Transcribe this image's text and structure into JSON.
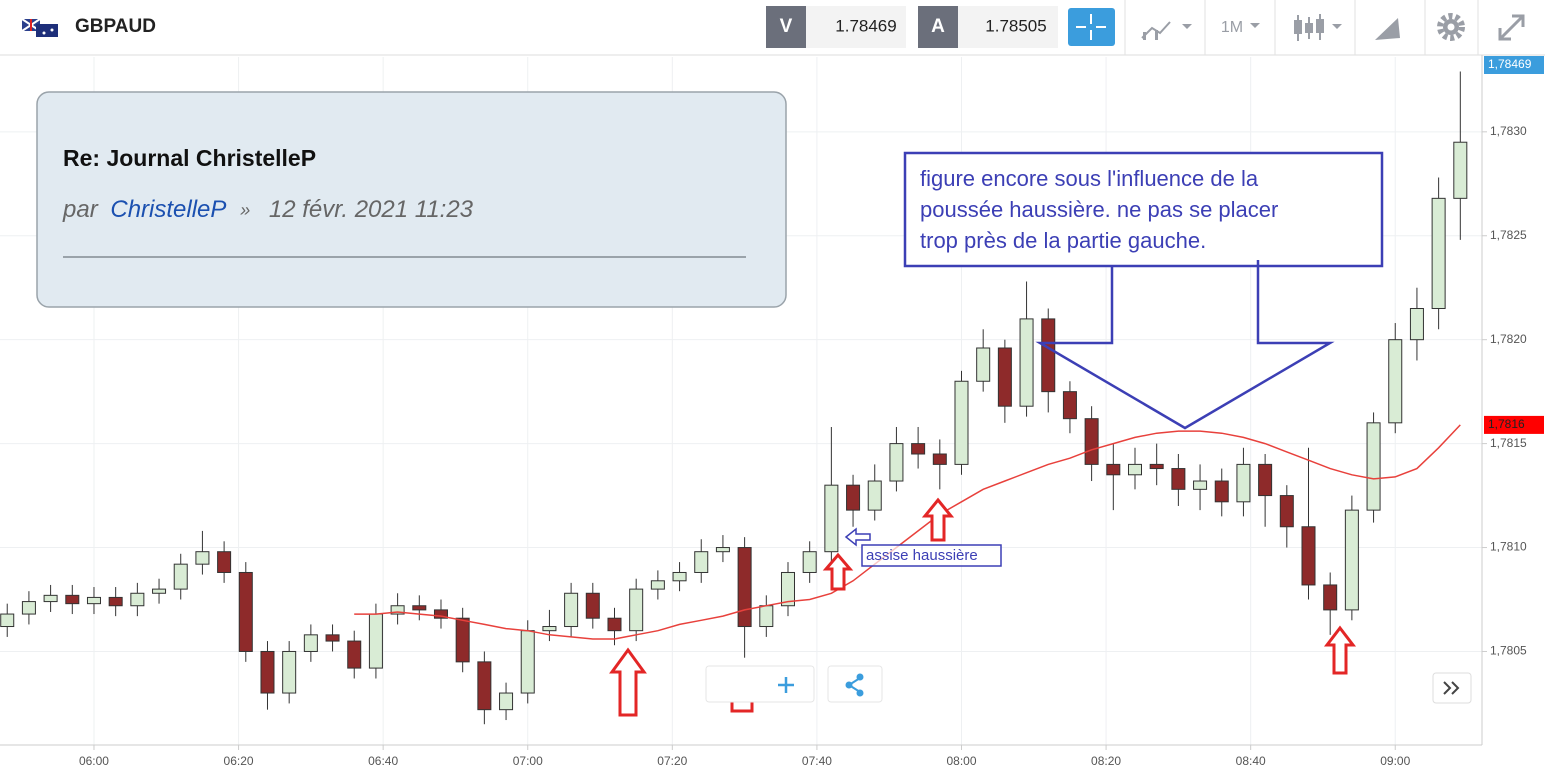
{
  "header": {
    "symbol": "GBPAUD",
    "bid_label": "V",
    "bid": 1.78469,
    "ask_label": "A",
    "ask": 1.78505,
    "timeframe": "1M"
  },
  "post": {
    "title": "Re: Journal ChristelleP",
    "by": "par",
    "author": "ChristelleP",
    "separator": "»",
    "date": "12 févr. 2021 11:23"
  },
  "chart_data": {
    "type": "candlestick",
    "x": [
      "05:48",
      "05:51",
      "05:54",
      "05:57",
      "06:00",
      "06:03",
      "06:06",
      "06:09",
      "06:12",
      "06:15",
      "06:18",
      "06:21",
      "06:24",
      "06:27",
      "06:30",
      "06:33",
      "06:36",
      "06:39",
      "06:42",
      "06:45",
      "06:48",
      "06:51",
      "06:54",
      "06:57",
      "07:00",
      "07:03",
      "07:06",
      "07:09",
      "07:12",
      "07:15",
      "07:18",
      "07:21",
      "07:24",
      "07:27",
      "07:30",
      "07:33",
      "07:36",
      "07:39",
      "07:42",
      "07:45",
      "07:48",
      "07:51",
      "07:54",
      "07:57",
      "08:00",
      "08:03",
      "08:06",
      "08:09",
      "08:12",
      "08:15",
      "08:18",
      "08:21",
      "08:24",
      "08:27",
      "08:30",
      "08:33",
      "08:36",
      "08:39",
      "08:42",
      "08:45",
      "08:48",
      "08:51",
      "08:54",
      "08:57",
      "09:00",
      "09:03",
      "09:06",
      "09:09"
    ],
    "open": [
      1.78062,
      1.78068,
      1.78074,
      1.78077,
      1.78073,
      1.78076,
      1.78072,
      1.78078,
      1.7808,
      1.78092,
      1.78098,
      1.78088,
      1.7805,
      1.7803,
      1.7805,
      1.78058,
      1.78055,
      1.78042,
      1.78068,
      1.78072,
      1.7807,
      1.78066,
      1.78045,
      1.78022,
      1.7803,
      1.7806,
      1.78062,
      1.78078,
      1.78066,
      1.7806,
      1.7808,
      1.78084,
      1.78088,
      1.78098,
      1.781,
      1.78062,
      1.78072,
      1.78088,
      1.78098,
      1.7813,
      1.78118,
      1.78132,
      1.7815,
      1.78145,
      1.7814,
      1.7818,
      1.78196,
      1.78168,
      1.7821,
      1.78175,
      1.78162,
      1.7814,
      1.78135,
      1.7814,
      1.78138,
      1.78128,
      1.78132,
      1.78122,
      1.7814,
      1.78125,
      1.7811,
      1.78082,
      1.7807,
      1.78118,
      1.7816,
      1.782,
      1.78215,
      1.78268
    ],
    "high": [
      1.78073,
      1.78079,
      1.78082,
      1.78082,
      1.78081,
      1.78081,
      1.78083,
      1.78085,
      1.78097,
      1.78108,
      1.78103,
      1.78093,
      1.78055,
      1.78055,
      1.78063,
      1.78063,
      1.7806,
      1.78073,
      1.78078,
      1.78077,
      1.78075,
      1.78071,
      1.7805,
      1.78035,
      1.78065,
      1.7807,
      1.78083,
      1.78083,
      1.78071,
      1.78085,
      1.78089,
      1.78093,
      1.78104,
      1.78106,
      1.78105,
      1.78077,
      1.78093,
      1.78103,
      1.78158,
      1.78135,
      1.7814,
      1.78158,
      1.78158,
      1.78152,
      1.78185,
      1.78205,
      1.782,
      1.78228,
      1.78215,
      1.7818,
      1.78168,
      1.7815,
      1.78148,
      1.7815,
      1.78145,
      1.7814,
      1.78138,
      1.78148,
      1.78145,
      1.7813,
      1.78148,
      1.78088,
      1.78125,
      1.78165,
      1.78208,
      1.78225,
      1.78278,
      1.78329
    ],
    "low": [
      1.78057,
      1.78063,
      1.78069,
      1.78068,
      1.78068,
      1.78067,
      1.78067,
      1.78073,
      1.78075,
      1.78087,
      1.78083,
      1.78045,
      1.78022,
      1.78025,
      1.78045,
      1.7805,
      1.78037,
      1.78037,
      1.78063,
      1.78065,
      1.78061,
      1.7804,
      1.78015,
      1.78017,
      1.78025,
      1.78055,
      1.78057,
      1.78061,
      1.78053,
      1.78055,
      1.78075,
      1.78079,
      1.78083,
      1.78093,
      1.78047,
      1.78057,
      1.78067,
      1.78083,
      1.78093,
      1.7811,
      1.78113,
      1.78127,
      1.78138,
      1.78128,
      1.78135,
      1.78175,
      1.7816,
      1.78163,
      1.78165,
      1.78155,
      1.78132,
      1.78118,
      1.78128,
      1.7813,
      1.7812,
      1.78118,
      1.78115,
      1.78115,
      1.7811,
      1.781,
      1.78075,
      1.78058,
      1.78065,
      1.78112,
      1.78155,
      1.7819,
      1.78205,
      1.78248
    ],
    "close": [
      1.78068,
      1.78074,
      1.78077,
      1.78073,
      1.78076,
      1.78072,
      1.78078,
      1.7808,
      1.78092,
      1.78098,
      1.78088,
      1.7805,
      1.7803,
      1.7805,
      1.78058,
      1.78055,
      1.78042,
      1.78068,
      1.78072,
      1.7807,
      1.78066,
      1.78045,
      1.78022,
      1.7803,
      1.7806,
      1.78062,
      1.78078,
      1.78066,
      1.7806,
      1.7808,
      1.78084,
      1.78088,
      1.78098,
      1.781,
      1.78062,
      1.78072,
      1.78088,
      1.78098,
      1.7813,
      1.78118,
      1.78132,
      1.7815,
      1.78145,
      1.7814,
      1.7818,
      1.78196,
      1.78168,
      1.7821,
      1.78175,
      1.78162,
      1.7814,
      1.78135,
      1.7814,
      1.78138,
      1.78128,
      1.78132,
      1.78122,
      1.7814,
      1.78125,
      1.7811,
      1.78082,
      1.7807,
      1.78118,
      1.7816,
      1.782,
      1.78215,
      1.78268,
      1.78295
    ],
    "up_color": "#d9ecd5",
    "down_color": "#8e2a2a",
    "moving_average": {
      "color": "#e8413c",
      "values": [
        null,
        null,
        null,
        null,
        null,
        null,
        null,
        null,
        null,
        null,
        null,
        null,
        null,
        null,
        null,
        null,
        1.78068,
        1.78068,
        1.78069,
        1.78068,
        1.78067,
        1.78065,
        1.78063,
        1.78061,
        1.7806,
        1.78058,
        1.78057,
        1.78056,
        1.78056,
        1.78058,
        1.7806,
        1.78063,
        1.78065,
        1.78067,
        1.7807,
        1.78072,
        1.78074,
        1.78075,
        1.78078,
        1.78084,
        1.78092,
        1.781,
        1.78108,
        1.78116,
        1.78122,
        1.78128,
        1.78132,
        1.78136,
        1.7814,
        1.78143,
        1.78147,
        1.7815,
        1.78153,
        1.78155,
        1.78156,
        1.78156,
        1.78155,
        1.78153,
        1.7815,
        1.78146,
        1.78142,
        1.78138,
        1.78135,
        1.78133,
        1.78134,
        1.78138,
        1.78148,
        1.78159
      ]
    },
    "ylim": [
      1.78005,
      1.78336
    ],
    "yticks": [
      {
        "value": 1.7805,
        "label": "1,7805"
      },
      {
        "value": 1.781,
        "label": "1,7810"
      },
      {
        "value": 1.7815,
        "label": "1,7815"
      },
      {
        "value": 1.782,
        "label": "1,7820"
      },
      {
        "value": 1.7825,
        "label": "1,7825"
      },
      {
        "value": 1.783,
        "label": "1,7830"
      }
    ],
    "xlim": [
      "05:47",
      "09:12"
    ],
    "xticks": [
      "06:00",
      "06:20",
      "06:40",
      "07:00",
      "07:20",
      "07:40",
      "08:00",
      "08:20",
      "08:40",
      "09:00"
    ],
    "grid": true,
    "last_price_label": "1,78469",
    "ma_price_label": "1,7816",
    "annotations": [
      {
        "lines": [
          "figure encore sous l'influence de la",
          "poussée haussière. ne pas se placer",
          "trop près de la partie gauche."
        ]
      },
      {
        "text": "assise haussière"
      }
    ]
  }
}
